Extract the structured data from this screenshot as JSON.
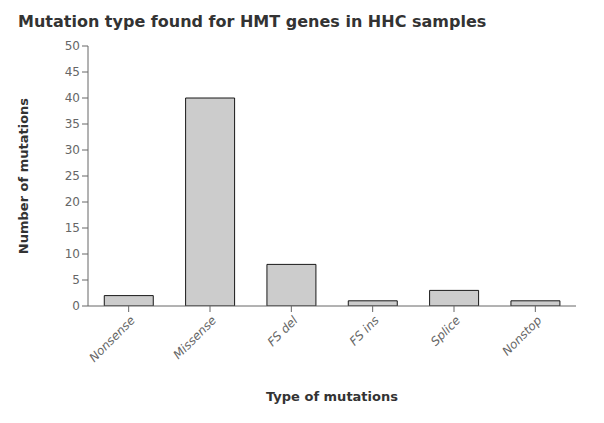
{
  "chart_data": {
    "type": "bar",
    "title": "Mutation type found for HMT genes in HHC samples",
    "xlabel": "Type of mutations",
    "ylabel": "Number of mutations",
    "categories": [
      "Nonsense",
      "Missense",
      "FS del",
      "FS ins",
      "Splice",
      "Nonstop"
    ],
    "values": [
      2,
      40,
      8,
      1,
      3,
      1
    ],
    "color": "#cccccc",
    "ylim": [
      0,
      50
    ],
    "yticks": [
      0,
      5,
      10,
      15,
      20,
      25,
      30,
      35,
      40,
      45,
      50
    ],
    "grid": false
  }
}
